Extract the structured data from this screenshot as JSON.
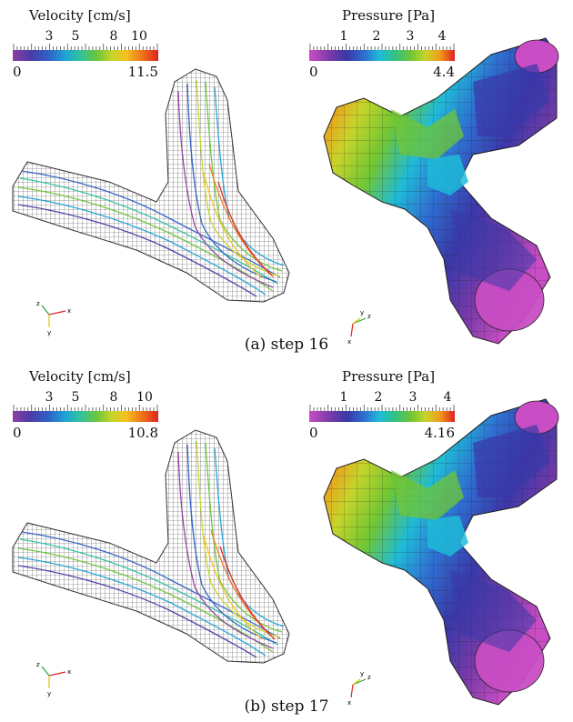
{
  "panels": [
    {
      "caption": "(a) step 16",
      "velocity": {
        "title": "Velocity [cm/s]",
        "ticks": [
          "3",
          "5",
          "8",
          "10"
        ],
        "min": "0",
        "max": "11.5"
      },
      "pressure": {
        "title": "Pressure [Pa]",
        "ticks": [
          "1",
          "2",
          "3",
          "4"
        ],
        "min": "0",
        "max": "4.4"
      }
    },
    {
      "caption": "(b) step 17",
      "velocity": {
        "title": "Velocity [cm/s]",
        "ticks": [
          "3",
          "5",
          "8",
          "10"
        ],
        "min": "0",
        "max": "10.8"
      },
      "pressure": {
        "title": "Pressure [Pa]",
        "ticks": [
          "1",
          "2",
          "3",
          "4"
        ],
        "min": "0",
        "max": "4.16"
      }
    }
  ],
  "axes_triad": {
    "x": "x",
    "y": "y",
    "z": "z"
  },
  "colors": {
    "velocity_scale": [
      "#8e3fa1",
      "#4b3ba8",
      "#2f5fc4",
      "#1fa3d6",
      "#2ec2a0",
      "#6cc63a",
      "#c5d52a",
      "#f4c11f",
      "#f07a1c",
      "#e0231e"
    ],
    "pressure_scale": [
      "#c94dc4",
      "#7a3ba8",
      "#3a38a8",
      "#2f6fd0",
      "#1fbbd8",
      "#2ec08a",
      "#70c634",
      "#c6d42a",
      "#f29a1c",
      "#e02020"
    ]
  }
}
